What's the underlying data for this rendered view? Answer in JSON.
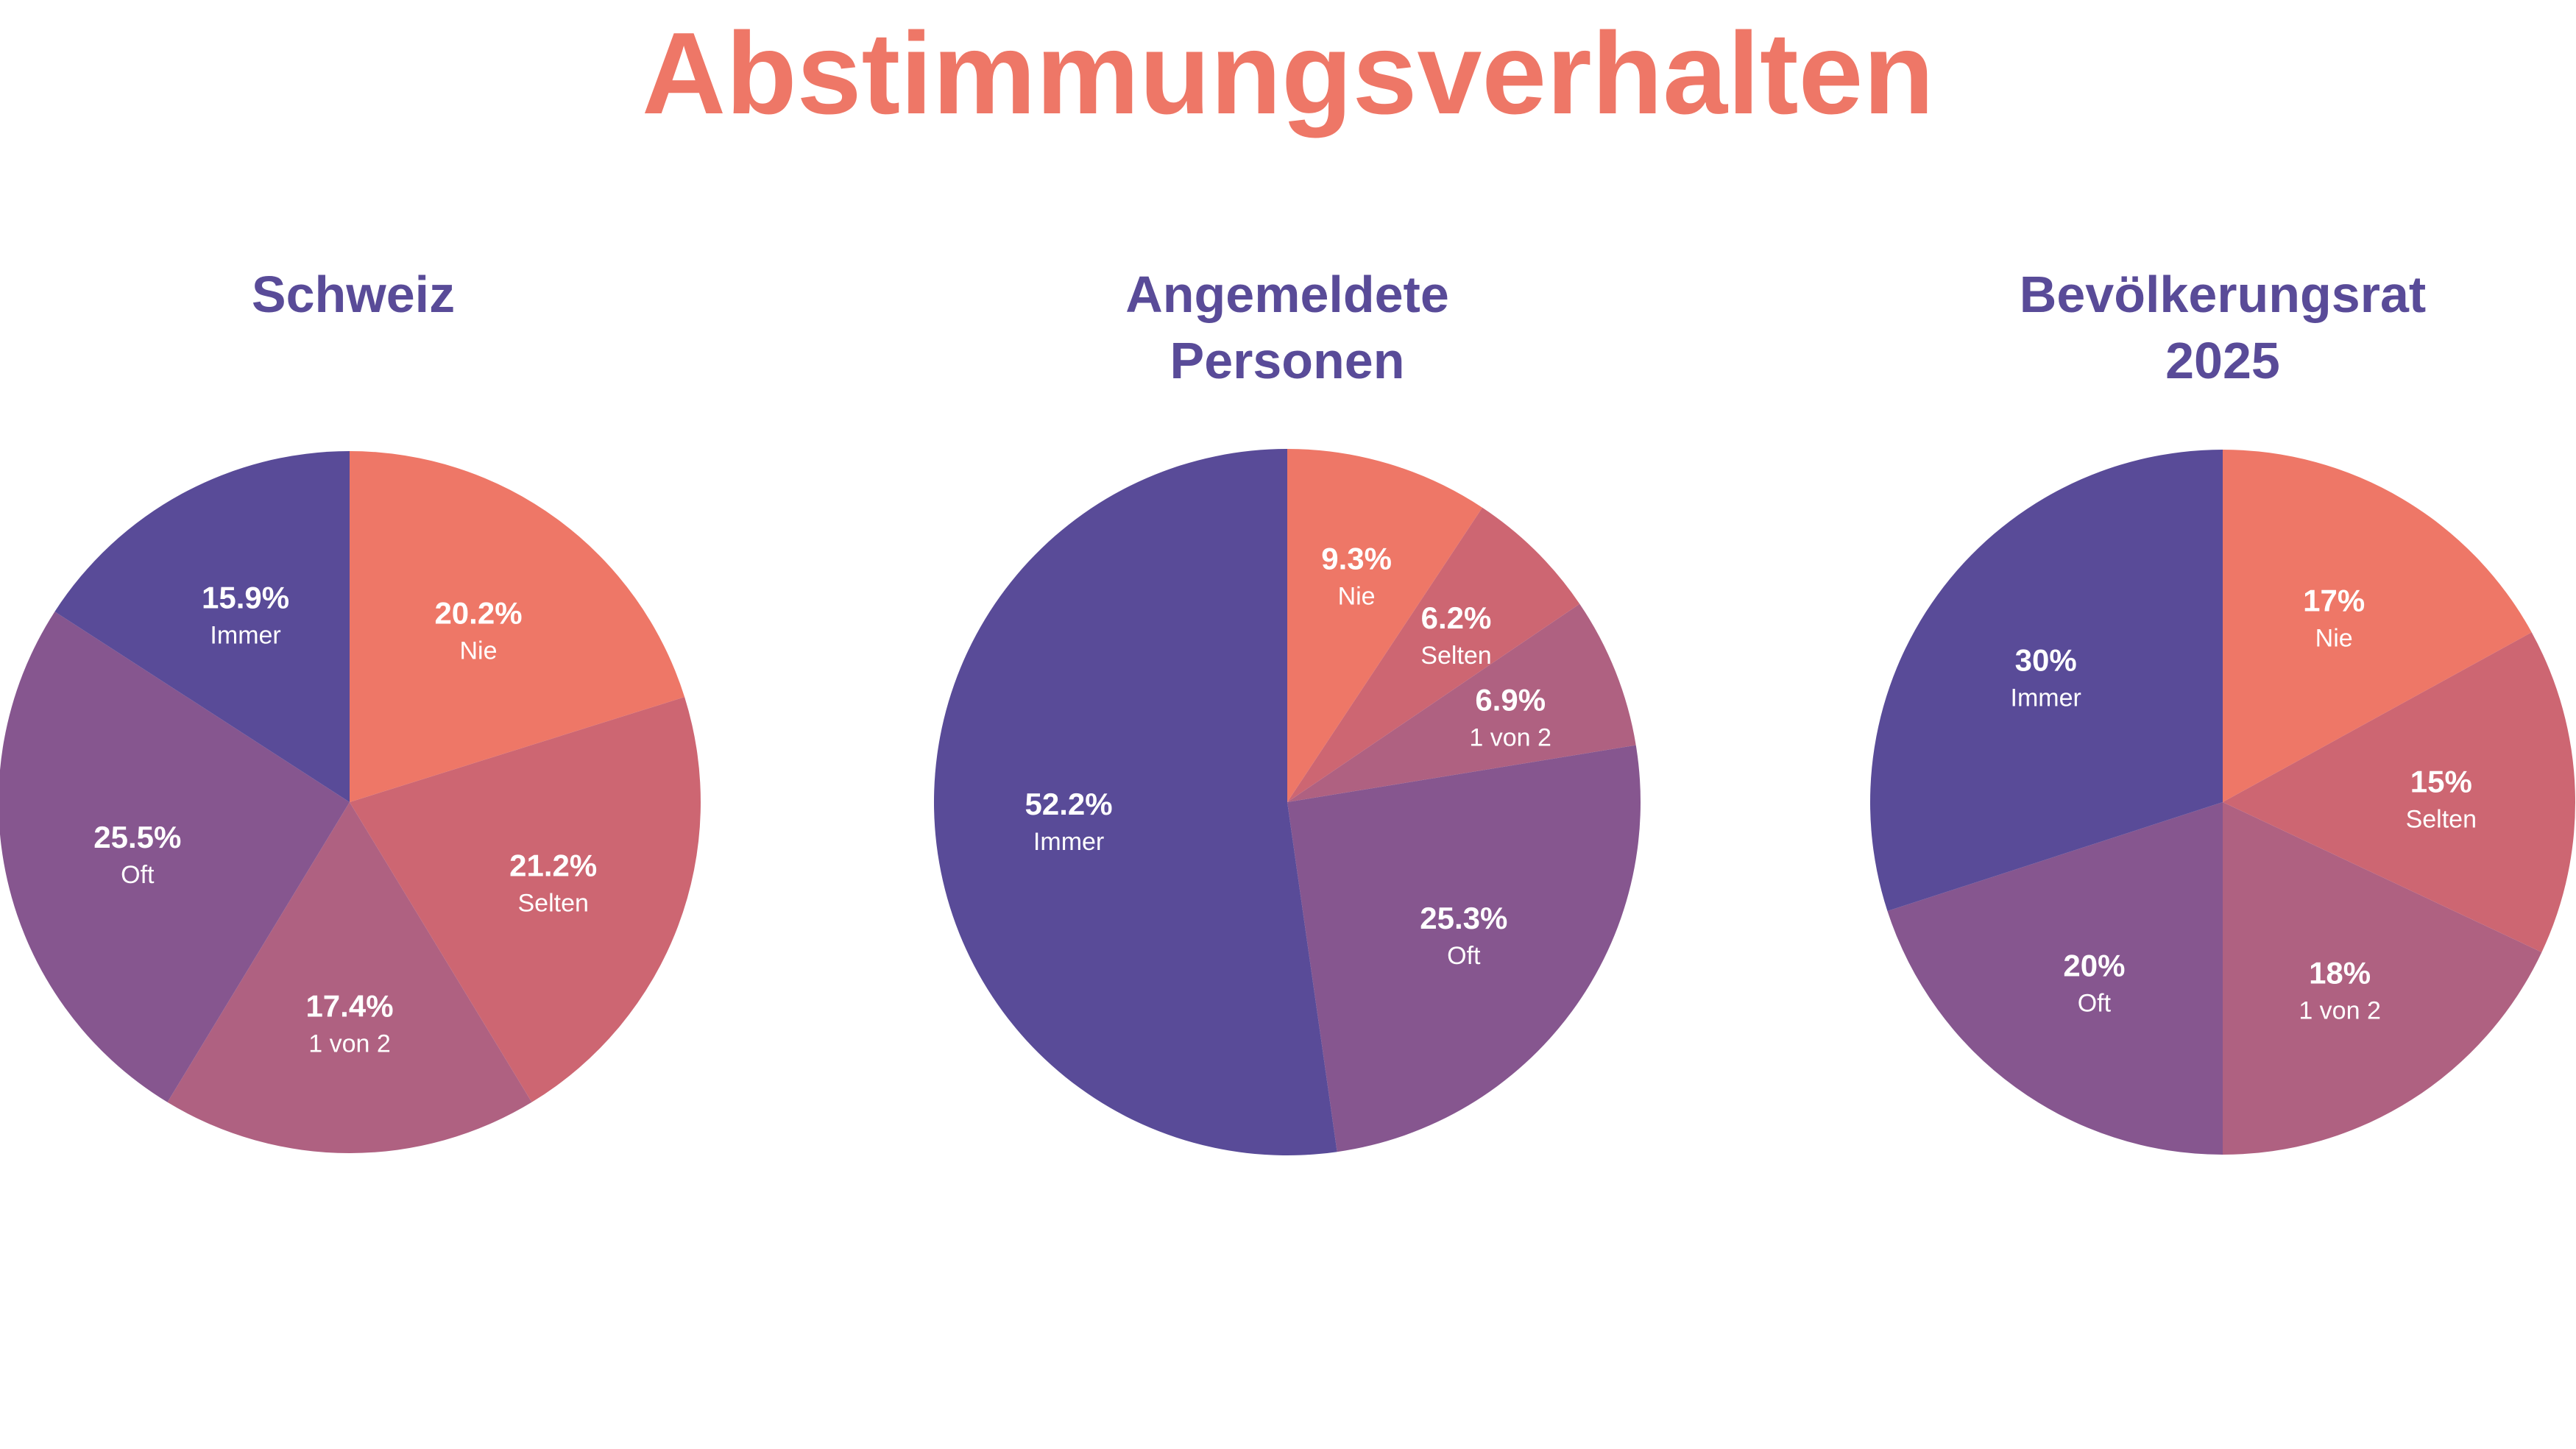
{
  "title": "Abstimmungsverhalten",
  "colors": {
    "title": "#EE7767",
    "subtitle": "#594B98",
    "Nie": "#EE7767",
    "Selten": "#CD6672",
    "1 von 2": "#AF6181",
    "Oft": "#86568F",
    "Immer": "#594B98",
    "label": "#FFFFFF"
  },
  "chart_data": [
    {
      "type": "pie",
      "title_lines": [
        "Schweiz"
      ],
      "slices": [
        {
          "label": "Nie",
          "value": 20.2,
          "display": "20.2%"
        },
        {
          "label": "Selten",
          "value": 21.2,
          "display": "21.2%"
        },
        {
          "label": "1 von 2",
          "value": 17.4,
          "display": "17.4%"
        },
        {
          "label": "Oft",
          "value": 25.5,
          "display": "25.5%"
        },
        {
          "label": "Immer",
          "value": 15.9,
          "display": "15.9%"
        }
      ]
    },
    {
      "type": "pie",
      "title_lines": [
        "Angemeldete",
        "Personen"
      ],
      "slices": [
        {
          "label": "Nie",
          "value": 9.3,
          "display": "9.3%"
        },
        {
          "label": "Selten",
          "value": 6.2,
          "display": "6.2%"
        },
        {
          "label": "1 von 2",
          "value": 6.9,
          "display": "6.9%"
        },
        {
          "label": "Oft",
          "value": 25.3,
          "display": "25.3%"
        },
        {
          "label": "Immer",
          "value": 52.2,
          "display": "52.2%"
        }
      ]
    },
    {
      "type": "pie",
      "title_lines": [
        "Bevölkerungsrat",
        "2025"
      ],
      "slices": [
        {
          "label": "Nie",
          "value": 17,
          "display": "17%"
        },
        {
          "label": "Selten",
          "value": 15,
          "display": "15%"
        },
        {
          "label": "1 von 2",
          "value": 18,
          "display": "18%"
        },
        {
          "label": "Oft",
          "value": 20,
          "display": "20%"
        },
        {
          "label": "Immer",
          "value": 30,
          "display": "30%"
        }
      ]
    }
  ]
}
